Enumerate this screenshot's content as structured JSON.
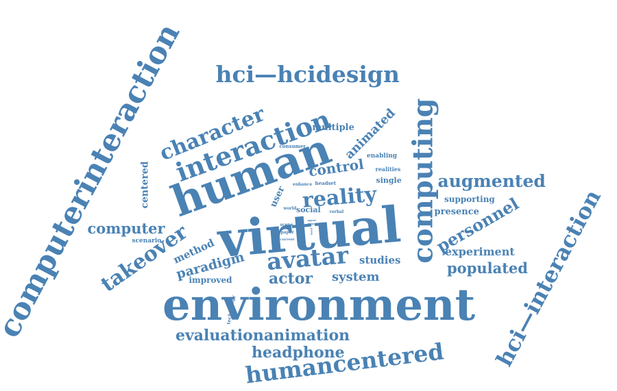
{
  "theme": {
    "word_color": "#4a82b4",
    "background": "#ffffff"
  },
  "words": [
    {
      "text": "environment"
    },
    {
      "text": "virtual"
    },
    {
      "text": "human"
    },
    {
      "text": "computerinteraction"
    },
    {
      "text": "computing"
    },
    {
      "text": "interaction"
    },
    {
      "text": "humancentered"
    },
    {
      "text": "hci—interaction"
    },
    {
      "text": "hci—hcidesign"
    },
    {
      "text": "avatar"
    },
    {
      "text": "reality"
    },
    {
      "text": "character"
    },
    {
      "text": "takeover"
    },
    {
      "text": "augmented"
    },
    {
      "text": "personnel"
    },
    {
      "text": "evaluationanimation"
    },
    {
      "text": "headphone"
    },
    {
      "text": "actor"
    },
    {
      "text": "computer"
    },
    {
      "text": "populated"
    },
    {
      "text": "system"
    },
    {
      "text": "paradigm"
    },
    {
      "text": "control"
    },
    {
      "text": "studies"
    },
    {
      "text": "experiment"
    },
    {
      "text": "animated"
    },
    {
      "text": "method"
    },
    {
      "text": "centered"
    },
    {
      "text": "presence"
    },
    {
      "text": "multiple"
    },
    {
      "text": "supporting"
    },
    {
      "text": "improved"
    },
    {
      "text": "user"
    },
    {
      "text": "social"
    },
    {
      "text": "single"
    },
    {
      "text": "scenario"
    },
    {
      "text": "enabling"
    },
    {
      "text": "realities"
    },
    {
      "text": "technology"
    },
    {
      "text": "consumer"
    },
    {
      "text": "headset"
    },
    {
      "text": "enhance"
    },
    {
      "text": "world"
    },
    {
      "text": "verbal"
    },
    {
      "text": "scene"
    },
    {
      "text": "paper"
    },
    {
      "text": "current"
    },
    {
      "text": "agent"
    },
    {
      "text": "many"
    },
    {
      "text": "used"
    }
  ]
}
